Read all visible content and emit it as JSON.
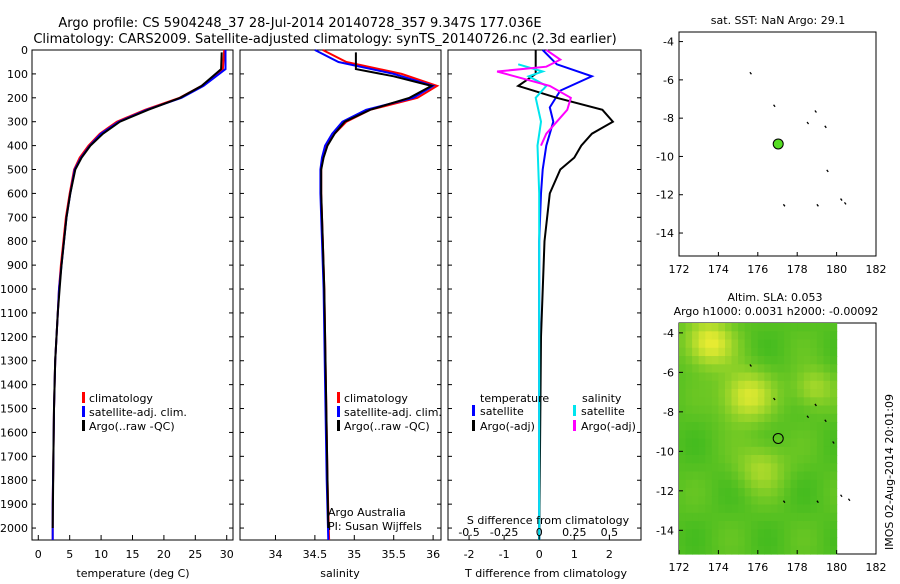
{
  "header": {
    "line1": "Argo profile: CS 5904248_37 28-Jul-2014 20140728_357 9.347S 177.036E",
    "line2": "Climatology: CARS2009. Satellite-adjusted climatology: synTS_20140726.nc (2.3d earlier)"
  },
  "colors": {
    "climatology": "#ff0000",
    "satellite": "#0000ff",
    "argo": "#000000",
    "salinity_satellite": "#00e5ee",
    "salinity_argo": "#ff00ff",
    "map_green": "#55dd22"
  },
  "y_axis": {
    "ticks": [
      "0",
      "100",
      "200",
      "300",
      "400",
      "500",
      "600",
      "700",
      "800",
      "900",
      "1000",
      "1100",
      "1200",
      "1300",
      "1400",
      "1500",
      "1600",
      "1700",
      "1800",
      "1900",
      "2000"
    ]
  },
  "chart_data": [
    {
      "type": "line",
      "id": "temperature",
      "xlabel": "temperature (deg C)",
      "ylabel": "",
      "xlim": [
        -1,
        31
      ],
      "ylim": [
        2050,
        0
      ],
      "x_ticks": [
        "0",
        "5",
        "10",
        "15",
        "20",
        "25",
        "30"
      ],
      "legend": [
        "climatology",
        "satellite-adj. clim.",
        "Argo(..raw -QC)"
      ],
      "series": [
        {
          "name": "climatology",
          "x": [
            29.6,
            29.4,
            26,
            22.5,
            17,
            12.5,
            9.8,
            8,
            6.6,
            5.7,
            5,
            4.4,
            4,
            3.6,
            3.3,
            3.1,
            2.9,
            2.7,
            2.6,
            2.5,
            2.4,
            2.3,
            2.3
          ],
          "y": [
            0,
            80,
            150,
            200,
            250,
            300,
            350,
            400,
            450,
            500,
            600,
            700,
            800,
            900,
            1000,
            1100,
            1200,
            1300,
            1400,
            1500,
            1700,
            1900,
            2050
          ]
        },
        {
          "name": "satellite-adj. clim.",
          "x": [
            29.8,
            29.8,
            26.3,
            22.8,
            17.3,
            12.8,
            10,
            8.2,
            6.8,
            5.8,
            5.1,
            4.5,
            4.1,
            3.7,
            3.3,
            3.1,
            2.9,
            2.7,
            2.6,
            2.5,
            2.4,
            2.3,
            2.3
          ],
          "y": [
            0,
            80,
            150,
            200,
            250,
            300,
            350,
            400,
            450,
            500,
            600,
            700,
            800,
            900,
            1000,
            1100,
            1200,
            1300,
            1400,
            1500,
            1700,
            1900,
            2050
          ]
        },
        {
          "name": "Argo(..raw -QC)",
          "x": [
            29.2,
            29.1,
            26,
            22.6,
            17.5,
            13,
            10.3,
            8.3,
            6.9,
            5.9,
            5.1,
            4.5,
            4.1,
            3.7,
            3.4,
            3.1,
            2.9,
            2.7,
            2.6,
            2.5,
            2.4,
            2.3
          ],
          "y": [
            10,
            80,
            150,
            200,
            250,
            300,
            350,
            400,
            450,
            500,
            600,
            700,
            800,
            900,
            1000,
            1100,
            1200,
            1300,
            1400,
            1500,
            1700,
            2000
          ]
        }
      ]
    },
    {
      "type": "line",
      "id": "salinity",
      "xlabel": "salinity",
      "ylabel": "",
      "xlim": [
        33.55,
        36.1
      ],
      "ylim": [
        2050,
        0
      ],
      "x_ticks": [
        "34",
        "34.5",
        "35",
        "35.5",
        "36"
      ],
      "legend": [
        "climatology",
        "satellite-adj. clim.",
        "Argo(..raw -QC)"
      ],
      "notes": [
        "Argo Australia",
        "PI: Susan Wijffels"
      ],
      "series": [
        {
          "name": "climatology",
          "x": [
            34.6,
            34.9,
            35.6,
            36.05,
            35.8,
            35.2,
            34.9,
            34.75,
            34.65,
            34.6,
            34.58,
            34.58,
            34.6,
            34.62,
            34.64,
            34.66,
            34.68
          ],
          "y": [
            0,
            50,
            100,
            150,
            200,
            250,
            300,
            350,
            400,
            450,
            500,
            600,
            800,
            1000,
            1400,
            1800,
            2050
          ]
        },
        {
          "name": "satellite-adj. clim.",
          "x": [
            34.5,
            34.8,
            35.5,
            36.0,
            35.75,
            35.15,
            34.85,
            34.72,
            34.63,
            34.59,
            34.57,
            34.57,
            34.59,
            34.61,
            34.63,
            34.65,
            34.67
          ],
          "y": [
            0,
            50,
            100,
            150,
            200,
            250,
            300,
            350,
            400,
            450,
            500,
            600,
            800,
            1000,
            1400,
            1800,
            2050
          ]
        },
        {
          "name": "Argo(..raw -QC)",
          "x": [
            35.02,
            35.02,
            35.5,
            35.98,
            35.7,
            35.2,
            34.88,
            34.75,
            34.66,
            34.61,
            34.58,
            34.58,
            34.6,
            34.62,
            34.64,
            34.66,
            34.67
          ],
          "y": [
            10,
            80,
            110,
            150,
            200,
            250,
            300,
            350,
            400,
            450,
            500,
            600,
            800,
            1000,
            1400,
            1800,
            2000
          ]
        }
      ]
    },
    {
      "type": "line",
      "id": "difference",
      "xlabel": "T difference from climatology",
      "x2label": "S difference from climatology",
      "xlim": [
        -2.6,
        2.9
      ],
      "ylim": [
        2050,
        0
      ],
      "x_ticks": [
        "-2",
        "-1",
        "0",
        "1",
        "2"
      ],
      "x2_ticks": [
        "-0.5",
        "-0.25",
        "0",
        "0.25",
        "0.5"
      ],
      "legend": {
        "temperature_heading": "temperature",
        "salinity_heading": "salinity",
        "items": [
          "satellite",
          "Argo(-adj)",
          "satellite",
          "Argo(-adj)"
        ]
      },
      "series": [
        {
          "name": "temperature satellite",
          "x": [
            0.1,
            0.5,
            1.5,
            0.6,
            0.3,
            0.4,
            0.3,
            0.2,
            0.1,
            0.05,
            0,
            0,
            0
          ],
          "y": [
            0,
            60,
            110,
            170,
            240,
            300,
            350,
            400,
            500,
            600,
            800,
            1200,
            2050
          ]
        },
        {
          "name": "temperature Argo(-adj)",
          "x": [
            -0.1,
            -0.1,
            -0.6,
            0.5,
            1.8,
            2.1,
            1.5,
            1.2,
            1.0,
            0.6,
            0.3,
            0.15,
            0.05,
            0
          ],
          "y": [
            0,
            100,
            150,
            200,
            250,
            300,
            350,
            400,
            450,
            500,
            600,
            800,
            1200,
            2050
          ]
        },
        {
          "name": "salinity satellite",
          "x": [
            -0.6,
            0.1,
            -0.3,
            0.2,
            -0.1,
            0.05,
            -0.05,
            0,
            0,
            0
          ],
          "y": [
            60,
            90,
            110,
            150,
            200,
            300,
            400,
            600,
            1000,
            2050
          ]
        },
        {
          "name": "salinity Argo(-adj)",
          "x": [
            0.2,
            0.6,
            0.2,
            -1.2,
            0.3,
            0.9,
            0.8,
            0.5,
            0.2,
            0.05
          ],
          "y": [
            0,
            40,
            70,
            90,
            150,
            200,
            250,
            300,
            350,
            400
          ]
        }
      ]
    },
    {
      "type": "scatter",
      "id": "sst_map",
      "title": "sat. SST: NaN Argo: 29.1",
      "xlim": [
        172,
        182
      ],
      "ylim": [
        -15.2,
        -3.5
      ],
      "x_ticks": [
        "172",
        "174",
        "176",
        "178",
        "180",
        "182"
      ],
      "y_ticks": [
        "-4",
        "-6",
        "-8",
        "-10",
        "-12",
        "-14"
      ],
      "profile_position": [
        177.036,
        -9.347
      ],
      "points": [
        [
          175.6,
          -5.6
        ],
        [
          176.8,
          -7.3
        ],
        [
          178.9,
          -7.6
        ],
        [
          178.5,
          -8.2
        ],
        [
          179.4,
          -8.4
        ],
        [
          179.5,
          -10.7
        ],
        [
          177.3,
          -12.5
        ],
        [
          179.0,
          -12.5
        ],
        [
          180.2,
          -12.2
        ],
        [
          180.4,
          -12.4
        ]
      ]
    },
    {
      "type": "heatmap",
      "id": "sla_map",
      "title": "Altim. SLA: 0.053",
      "subtitle": "Argo h1000: 0.0031 h2000: -0.00092",
      "xlim": [
        172,
        182
      ],
      "ylim": [
        -15.2,
        -3.5
      ],
      "x_ticks": [
        "172",
        "174",
        "176",
        "178",
        "180",
        "182"
      ],
      "y_ticks": [
        "-4",
        "-6",
        "-8",
        "-10",
        "-12",
        "-14"
      ],
      "profile_position": [
        177.036,
        -9.347
      ],
      "points": [
        [
          175.6,
          -5.6
        ],
        [
          176.8,
          -7.3
        ],
        [
          178.9,
          -7.6
        ],
        [
          178.5,
          -8.2
        ],
        [
          179.4,
          -8.4
        ],
        [
          179.8,
          -9.5
        ],
        [
          177.3,
          -12.5
        ],
        [
          179.0,
          -12.5
        ],
        [
          180.2,
          -12.2
        ],
        [
          180.6,
          -12.4
        ]
      ],
      "stamp": "IMOS 02-Aug-2014 20:01:09"
    }
  ]
}
